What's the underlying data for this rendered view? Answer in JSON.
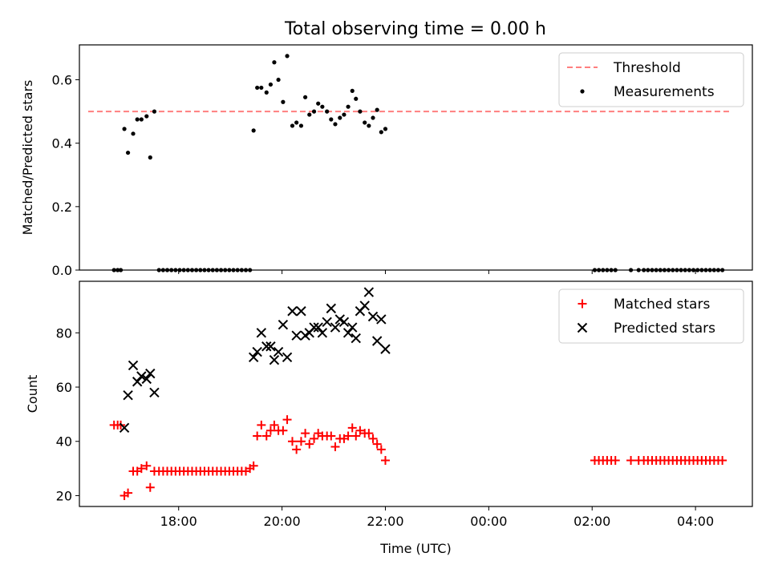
{
  "figure": {
    "title": "Total observing time = 0.00 h"
  },
  "chart_data": [
    {
      "type": "scatter",
      "ylabel": "Matched/Predicted stars",
      "xlabel": "",
      "x_ticks": [
        "18:00",
        "20:00",
        "22:00",
        "00:00",
        "02:00",
        "04:00"
      ],
      "x_tick_hours": [
        18,
        20,
        22,
        24,
        26,
        28
      ],
      "xlim_hours": [
        16.08,
        29.1
      ],
      "ylim": [
        0,
        0.71
      ],
      "y_ticks": [
        0.0,
        0.2,
        0.4,
        0.6
      ],
      "y_tick_labels": [
        "0.0",
        "0.2",
        "0.4",
        "0.6"
      ],
      "x_tick_labels_shown": false,
      "legend": {
        "position": "top-right",
        "entries": [
          "Threshold",
          "Measurements"
        ]
      },
      "threshold": {
        "name": "Threshold",
        "value": 0.5,
        "x_range_hours": [
          16.25,
          28.7
        ],
        "color": "#ff7f7f",
        "style": "dashed"
      },
      "series": [
        {
          "name": "Measurements",
          "marker": "dot",
          "color": "#000000",
          "points": [
            [
              16.75,
              0.0
            ],
            [
              16.82,
              0.0
            ],
            [
              16.88,
              0.0
            ],
            [
              16.95,
              0.445
            ],
            [
              17.02,
              0.37
            ],
            [
              17.12,
              0.43
            ],
            [
              17.2,
              0.475
            ],
            [
              17.28,
              0.475
            ],
            [
              17.38,
              0.485
            ],
            [
              17.45,
              0.355
            ],
            [
              17.53,
              0.5
            ],
            [
              17.62,
              0.0
            ],
            [
              17.7,
              0.0
            ],
            [
              17.78,
              0.0
            ],
            [
              17.86,
              0.0
            ],
            [
              17.94,
              0.0
            ],
            [
              18.02,
              0.0
            ],
            [
              18.1,
              0.0
            ],
            [
              18.18,
              0.0
            ],
            [
              18.26,
              0.0
            ],
            [
              18.34,
              0.0
            ],
            [
              18.42,
              0.0
            ],
            [
              18.5,
              0.0
            ],
            [
              18.58,
              0.0
            ],
            [
              18.66,
              0.0
            ],
            [
              18.74,
              0.0
            ],
            [
              18.82,
              0.0
            ],
            [
              18.9,
              0.0
            ],
            [
              18.98,
              0.0
            ],
            [
              19.06,
              0.0
            ],
            [
              19.14,
              0.0
            ],
            [
              19.22,
              0.0
            ],
            [
              19.3,
              0.0
            ],
            [
              19.38,
              0.0
            ],
            [
              19.45,
              0.44
            ],
            [
              19.52,
              0.575
            ],
            [
              19.6,
              0.575
            ],
            [
              19.7,
              0.56
            ],
            [
              19.78,
              0.585
            ],
            [
              19.85,
              0.655
            ],
            [
              19.93,
              0.6
            ],
            [
              20.02,
              0.53
            ],
            [
              20.1,
              0.675
            ],
            [
              20.2,
              0.455
            ],
            [
              20.28,
              0.465
            ],
            [
              20.37,
              0.455
            ],
            [
              20.45,
              0.545
            ],
            [
              20.53,
              0.49
            ],
            [
              20.62,
              0.5
            ],
            [
              20.7,
              0.525
            ],
            [
              20.78,
              0.515
            ],
            [
              20.87,
              0.5
            ],
            [
              20.95,
              0.475
            ],
            [
              21.03,
              0.46
            ],
            [
              21.12,
              0.48
            ],
            [
              21.2,
              0.49
            ],
            [
              21.28,
              0.515
            ],
            [
              21.36,
              0.565
            ],
            [
              21.43,
              0.54
            ],
            [
              21.51,
              0.5
            ],
            [
              21.6,
              0.465
            ],
            [
              21.68,
              0.455
            ],
            [
              21.76,
              0.48
            ],
            [
              21.84,
              0.505
            ],
            [
              21.92,
              0.435
            ],
            [
              22.0,
              0.445
            ],
            [
              26.05,
              0.0
            ],
            [
              26.13,
              0.0
            ],
            [
              26.21,
              0.0
            ],
            [
              26.29,
              0.0
            ],
            [
              26.37,
              0.0
            ],
            [
              26.45,
              0.0
            ],
            [
              26.75,
              0.0
            ],
            [
              26.9,
              0.0
            ],
            [
              27.0,
              0.0
            ],
            [
              27.08,
              0.0
            ],
            [
              27.16,
              0.0
            ],
            [
              27.24,
              0.0
            ],
            [
              27.32,
              0.0
            ],
            [
              27.4,
              0.0
            ],
            [
              27.48,
              0.0
            ],
            [
              27.56,
              0.0
            ],
            [
              27.64,
              0.0
            ],
            [
              27.72,
              0.0
            ],
            [
              27.8,
              0.0
            ],
            [
              27.88,
              0.0
            ],
            [
              27.96,
              0.0
            ],
            [
              28.04,
              0.0
            ],
            [
              28.12,
              0.0
            ],
            [
              28.2,
              0.0
            ],
            [
              28.28,
              0.0
            ],
            [
              28.36,
              0.0
            ],
            [
              28.44,
              0.0
            ],
            [
              28.52,
              0.0
            ]
          ]
        }
      ]
    },
    {
      "type": "scatter",
      "ylabel": "Count",
      "xlabel": "Time (UTC)",
      "x_ticks": [
        "18:00",
        "20:00",
        "22:00",
        "00:00",
        "02:00",
        "04:00"
      ],
      "x_tick_hours": [
        18,
        20,
        22,
        24,
        26,
        28
      ],
      "xlim_hours": [
        16.08,
        29.1
      ],
      "ylim": [
        16,
        99
      ],
      "y_ticks": [
        20,
        40,
        60,
        80
      ],
      "y_tick_labels": [
        "20",
        "40",
        "60",
        "80"
      ],
      "x_tick_labels_shown": true,
      "legend": {
        "position": "top-right",
        "entries": [
          "Matched stars",
          "Predicted stars"
        ]
      },
      "series": [
        {
          "name": "Matched stars",
          "marker": "plus",
          "color": "#ff0000",
          "points": [
            [
              16.75,
              46
            ],
            [
              16.82,
              46
            ],
            [
              16.88,
              46
            ],
            [
              16.95,
              20
            ],
            [
              17.02,
              21
            ],
            [
              17.12,
              29
            ],
            [
              17.2,
              29
            ],
            [
              17.28,
              30
            ],
            [
              17.38,
              31
            ],
            [
              17.45,
              23
            ],
            [
              17.53,
              29
            ],
            [
              17.62,
              29
            ],
            [
              17.7,
              29
            ],
            [
              17.78,
              29
            ],
            [
              17.86,
              29
            ],
            [
              17.94,
              29
            ],
            [
              18.02,
              29
            ],
            [
              18.1,
              29
            ],
            [
              18.18,
              29
            ],
            [
              18.26,
              29
            ],
            [
              18.34,
              29
            ],
            [
              18.42,
              29
            ],
            [
              18.5,
              29
            ],
            [
              18.58,
              29
            ],
            [
              18.66,
              29
            ],
            [
              18.74,
              29
            ],
            [
              18.82,
              29
            ],
            [
              18.9,
              29
            ],
            [
              18.98,
              29
            ],
            [
              19.06,
              29
            ],
            [
              19.14,
              29
            ],
            [
              19.22,
              29
            ],
            [
              19.3,
              29
            ],
            [
              19.38,
              30
            ],
            [
              19.45,
              31
            ],
            [
              19.52,
              42
            ],
            [
              19.6,
              46
            ],
            [
              19.7,
              42
            ],
            [
              19.78,
              44
            ],
            [
              19.85,
              46
            ],
            [
              19.93,
              44
            ],
            [
              20.02,
              44
            ],
            [
              20.1,
              48
            ],
            [
              20.2,
              40
            ],
            [
              20.28,
              37
            ],
            [
              20.37,
              40
            ],
            [
              20.45,
              43
            ],
            [
              20.53,
              39
            ],
            [
              20.62,
              41
            ],
            [
              20.7,
              43
            ],
            [
              20.78,
              42
            ],
            [
              20.87,
              42
            ],
            [
              20.95,
              42
            ],
            [
              21.03,
              38
            ],
            [
              21.12,
              41
            ],
            [
              21.2,
              41
            ],
            [
              21.28,
              42
            ],
            [
              21.36,
              45
            ],
            [
              21.43,
              42
            ],
            [
              21.51,
              44
            ],
            [
              21.6,
              43
            ],
            [
              21.68,
              43
            ],
            [
              21.76,
              41
            ],
            [
              21.84,
              39
            ],
            [
              21.92,
              37
            ],
            [
              22.0,
              33
            ],
            [
              26.05,
              33
            ],
            [
              26.13,
              33
            ],
            [
              26.21,
              33
            ],
            [
              26.29,
              33
            ],
            [
              26.37,
              33
            ],
            [
              26.45,
              33
            ],
            [
              26.75,
              33
            ],
            [
              26.9,
              33
            ],
            [
              27.0,
              33
            ],
            [
              27.08,
              33
            ],
            [
              27.16,
              33
            ],
            [
              27.24,
              33
            ],
            [
              27.32,
              33
            ],
            [
              27.4,
              33
            ],
            [
              27.48,
              33
            ],
            [
              27.56,
              33
            ],
            [
              27.64,
              33
            ],
            [
              27.72,
              33
            ],
            [
              27.8,
              33
            ],
            [
              27.88,
              33
            ],
            [
              27.96,
              33
            ],
            [
              28.04,
              33
            ],
            [
              28.12,
              33
            ],
            [
              28.2,
              33
            ],
            [
              28.28,
              33
            ],
            [
              28.36,
              33
            ],
            [
              28.44,
              33
            ],
            [
              28.52,
              33
            ]
          ]
        },
        {
          "name": "Predicted stars",
          "marker": "x",
          "color": "#000000",
          "points": [
            [
              16.95,
              45
            ],
            [
              17.02,
              57
            ],
            [
              17.12,
              68
            ],
            [
              17.2,
              62
            ],
            [
              17.28,
              64
            ],
            [
              17.38,
              63
            ],
            [
              17.45,
              65
            ],
            [
              17.53,
              58
            ],
            [
              19.45,
              71
            ],
            [
              19.52,
              73
            ],
            [
              19.6,
              80
            ],
            [
              19.7,
              75
            ],
            [
              19.78,
              75
            ],
            [
              19.85,
              70
            ],
            [
              19.93,
              73
            ],
            [
              20.02,
              83
            ],
            [
              20.1,
              71
            ],
            [
              20.2,
              88
            ],
            [
              20.28,
              79
            ],
            [
              20.37,
              88
            ],
            [
              20.45,
              79
            ],
            [
              20.53,
              80
            ],
            [
              20.62,
              82
            ],
            [
              20.7,
              82
            ],
            [
              20.78,
              80
            ],
            [
              20.87,
              84
            ],
            [
              20.95,
              89
            ],
            [
              21.03,
              82
            ],
            [
              21.12,
              85
            ],
            [
              21.2,
              84
            ],
            [
              21.28,
              80
            ],
            [
              21.36,
              82
            ],
            [
              21.43,
              78
            ],
            [
              21.51,
              88
            ],
            [
              21.6,
              90
            ],
            [
              21.68,
              95
            ],
            [
              21.76,
              86
            ],
            [
              21.84,
              77
            ],
            [
              21.92,
              85
            ],
            [
              22.0,
              74
            ]
          ]
        }
      ]
    }
  ]
}
